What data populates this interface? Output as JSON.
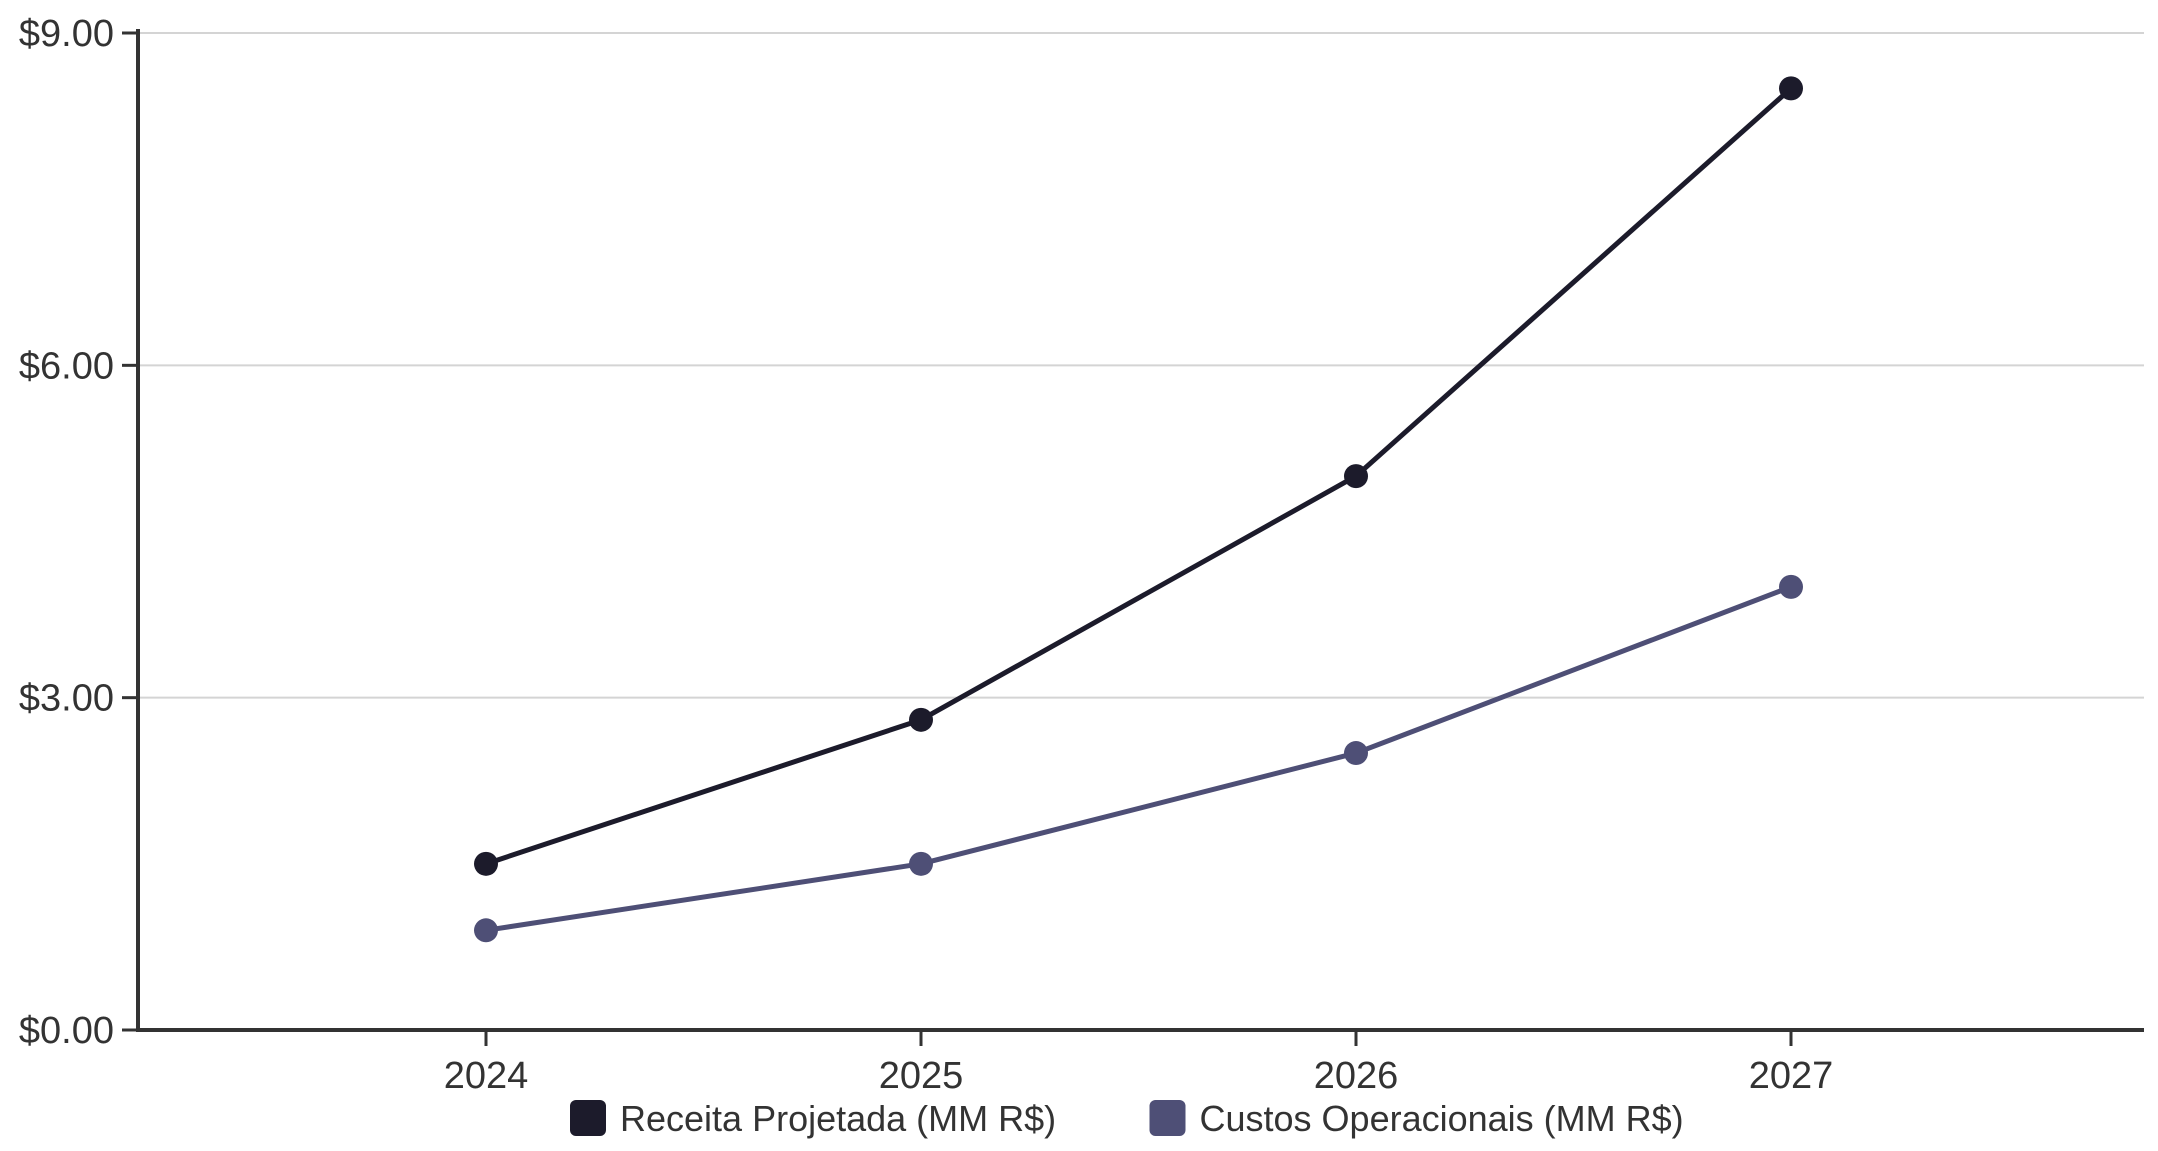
{
  "chart_data": {
    "type": "line",
    "title": "",
    "xlabel": "",
    "ylabel": "",
    "categories": [
      "2024",
      "2025",
      "2026",
      "2027"
    ],
    "yticks": [
      0,
      3,
      6,
      9
    ],
    "ytick_labels": [
      "$0.00",
      "$3.00",
      "$6.00",
      "$9.00"
    ],
    "ylim": [
      0,
      9
    ],
    "grid": true,
    "legend_position": "bottom",
    "series": [
      {
        "name": "Receita Projetada (MM R$)",
        "values": [
          1.5,
          2.8,
          5.0,
          8.5
        ],
        "color": "#1c1b2b"
      },
      {
        "name": "Custos Operacionais (MM R$)",
        "values": [
          0.9,
          1.5,
          2.5,
          4.0
        ],
        "color": "#4e4f76"
      }
    ]
  }
}
